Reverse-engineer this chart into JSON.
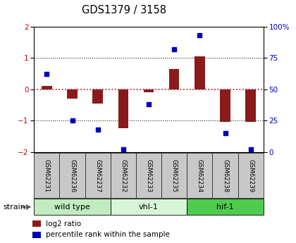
{
  "title": "GDS1379 / 3158",
  "samples": [
    "GSM62231",
    "GSM62236",
    "GSM62237",
    "GSM62232",
    "GSM62233",
    "GSM62235",
    "GSM62234",
    "GSM62238",
    "GSM62239"
  ],
  "log2_ratio": [
    0.1,
    -0.3,
    -0.45,
    -1.25,
    -0.1,
    0.65,
    1.05,
    -1.05,
    -1.05
  ],
  "percentile_rank": [
    62,
    25,
    18,
    2,
    38,
    82,
    93,
    15,
    2
  ],
  "groups": [
    {
      "label": "wild type",
      "start": 0,
      "end": 3,
      "color": "#c0ecc0"
    },
    {
      "label": "vhl-1",
      "start": 3,
      "end": 6,
      "color": "#d8f5d8"
    },
    {
      "label": "hif-1",
      "start": 6,
      "end": 9,
      "color": "#4dcc4d"
    }
  ],
  "bar_color": "#8b1a1a",
  "dot_color": "#0000bb",
  "ylim_left": [
    -2,
    2
  ],
  "ylim_right": [
    0,
    100
  ],
  "yticks_left": [
    -2,
    -1,
    0,
    1,
    2
  ],
  "yticks_right": [
    0,
    25,
    50,
    75,
    100
  ],
  "left_tick_color": "#cc0000",
  "right_tick_color": "#0000bb",
  "hline_color_zero": "#cc0000",
  "hline_color_grid": "#222222",
  "plot_bg_color": "#ffffff",
  "sample_box_color": "#c8c8c8",
  "legend_items": [
    {
      "label": "log2 ratio",
      "color": "#8b1a1a"
    },
    {
      "label": "percentile rank within the sample",
      "color": "#0000bb"
    }
  ],
  "strain_label": "strain",
  "bar_width": 0.4
}
